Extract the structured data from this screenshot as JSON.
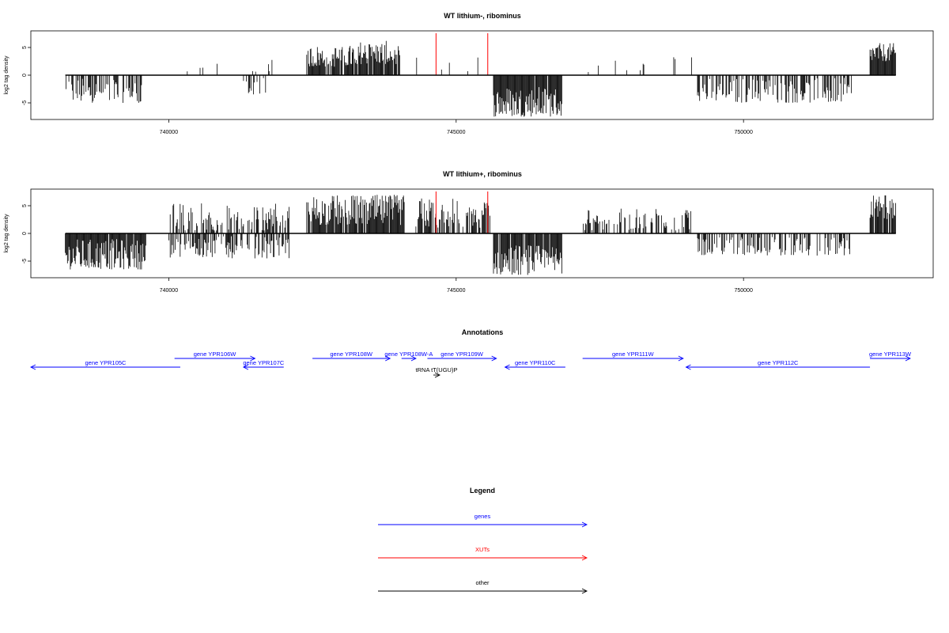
{
  "chart_data": [
    {
      "type": "bar",
      "title": "WT lithium-, ribominus",
      "ylabel": "log2 tag density",
      "xlim": [
        737600,
        753300
      ],
      "ylim": [
        -8,
        8
      ],
      "x_ticks": [
        740000,
        745000,
        750000
      ],
      "y_ticks": [
        -5,
        0,
        5
      ],
      "baseline": 0,
      "marker_lines": [
        {
          "x": 744650,
          "color": "#ff0000"
        },
        {
          "x": 745550,
          "color": "#ff0000"
        }
      ],
      "segments": [
        {
          "start": 738200,
          "end": 739550,
          "min": -5,
          "max": -0.5,
          "density": 0.55,
          "sign": -1
        },
        {
          "start": 740000,
          "end": 741000,
          "min": 0.5,
          "max": 3.2,
          "density": 0.07,
          "sign": 1
        },
        {
          "start": 741300,
          "end": 741750,
          "min": -3.5,
          "max": -0.5,
          "density": 0.35,
          "sign": -1
        },
        {
          "start": 741350,
          "end": 741800,
          "min": 0.5,
          "max": 3,
          "density": 0.12,
          "sign": 1
        },
        {
          "start": 742400,
          "end": 743200,
          "min": 1.5,
          "max": 5.5,
          "density": 0.85,
          "sign": 1
        },
        {
          "start": 743200,
          "end": 744050,
          "min": 2,
          "max": 6.2,
          "density": 0.9,
          "sign": 1
        },
        {
          "start": 744300,
          "end": 745500,
          "min": 0.5,
          "max": 3.3,
          "density": 0.08,
          "sign": 1
        },
        {
          "start": 745650,
          "end": 746850,
          "min": -7.5,
          "max": -2,
          "density": 0.95,
          "sign": -1
        },
        {
          "start": 747250,
          "end": 749100,
          "min": 0.5,
          "max": 3.5,
          "density": 0.06,
          "sign": 1
        },
        {
          "start": 749200,
          "end": 751900,
          "min": -5,
          "max": -0.5,
          "density": 0.5,
          "sign": -1
        },
        {
          "start": 752200,
          "end": 752650,
          "min": 2.5,
          "max": 5.8,
          "density": 0.95,
          "sign": 1
        }
      ]
    },
    {
      "type": "bar",
      "title": "WT lithium+, ribominus",
      "ylabel": "log2 tag density",
      "xlim": [
        737600,
        753300
      ],
      "ylim": [
        -8,
        8
      ],
      "x_ticks": [
        740000,
        745000,
        750000
      ],
      "y_ticks": [
        -5,
        0,
        5
      ],
      "baseline": 0,
      "marker_lines": [
        {
          "x": 744650,
          "color": "#ff0000"
        },
        {
          "x": 745550,
          "color": "#ff0000"
        }
      ],
      "segments": [
        {
          "start": 738200,
          "end": 739600,
          "min": -6.5,
          "max": -1,
          "density": 0.95,
          "sign": -1
        },
        {
          "start": 740000,
          "end": 742100,
          "min": 0.5,
          "max": 5.5,
          "density": 0.55,
          "sign": 1
        },
        {
          "start": 740000,
          "end": 742100,
          "min": -4.5,
          "max": -0.5,
          "density": 0.55,
          "sign": -1
        },
        {
          "start": 742400,
          "end": 744100,
          "min": 1.5,
          "max": 7,
          "density": 0.92,
          "sign": 1
        },
        {
          "start": 744300,
          "end": 745600,
          "min": 1,
          "max": 6.5,
          "density": 0.7,
          "sign": 1
        },
        {
          "start": 745650,
          "end": 746850,
          "min": -7.5,
          "max": -2,
          "density": 0.95,
          "sign": -1
        },
        {
          "start": 747200,
          "end": 749100,
          "min": 0.5,
          "max": 4.5,
          "density": 0.45,
          "sign": 1
        },
        {
          "start": 749200,
          "end": 751900,
          "min": -4,
          "max": -0.5,
          "density": 0.45,
          "sign": -1
        },
        {
          "start": 752200,
          "end": 752650,
          "min": 2.5,
          "max": 7,
          "density": 0.95,
          "sign": 1
        }
      ]
    }
  ],
  "annotations": {
    "title": "Annotations",
    "xlim": [
      737600,
      753300
    ],
    "features": [
      {
        "label": "gene YPR105C",
        "start": 737600,
        "end": 740200,
        "strand": "-",
        "row": "low",
        "color": "#0000ff"
      },
      {
        "label": "gene YPR106W",
        "start": 740100,
        "end": 741500,
        "strand": "+",
        "row": "high",
        "color": "#0000ff"
      },
      {
        "label": "gene YPR107C",
        "start": 741300,
        "end": 742000,
        "strand": "-",
        "row": "low",
        "color": "#0000ff"
      },
      {
        "label": "gene YPR108W",
        "start": 742500,
        "end": 743850,
        "strand": "+",
        "row": "high",
        "color": "#0000ff"
      },
      {
        "label": "gene YPR108W-A",
        "start": 744050,
        "end": 744300,
        "strand": "+",
        "row": "high",
        "color": "#0000ff"
      },
      {
        "label": "gene YPR109W",
        "start": 744500,
        "end": 745700,
        "strand": "+",
        "row": "high",
        "color": "#0000ff"
      },
      {
        "label": "gene YPR110C",
        "start": 745850,
        "end": 746900,
        "strand": "-",
        "row": "low",
        "color": "#0000ff"
      },
      {
        "label": "gene YPR111W",
        "start": 747200,
        "end": 748950,
        "strand": "+",
        "row": "high",
        "color": "#0000ff"
      },
      {
        "label": "gene YPR112C",
        "start": 749000,
        "end": 752200,
        "strand": "-",
        "row": "low",
        "color": "#0000ff"
      },
      {
        "label": "gene YPR113W",
        "start": 752200,
        "end": 752900,
        "strand": "+",
        "row": "high",
        "color": "#0000ff"
      },
      {
        "label": "tRNA tT(UGU)P",
        "start": 744250,
        "end": 744300,
        "strand": "+",
        "row": "trna",
        "color": "#000000"
      }
    ]
  },
  "legend": {
    "title": "Legend",
    "items": [
      {
        "label": "genes",
        "color": "#0000ff"
      },
      {
        "label": "XUTs",
        "color": "#ff0000"
      },
      {
        "label": "other",
        "color": "#000000"
      }
    ]
  }
}
